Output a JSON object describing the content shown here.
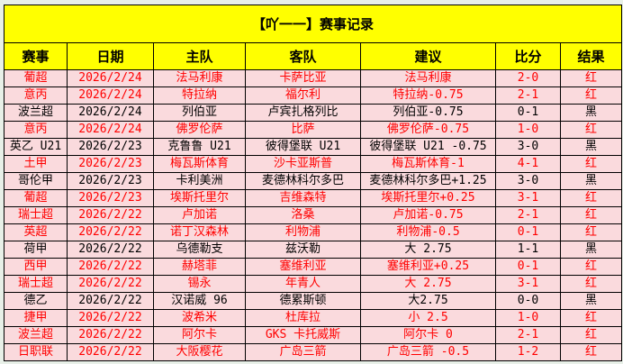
{
  "title": "【吖一一】赛事记录",
  "headers": [
    "赛事",
    "日期",
    "主队",
    "客队",
    "建议",
    "比分",
    "结果"
  ],
  "colors": {
    "header_bg": "#ffff00",
    "row_bg": "#fadadd",
    "win": "#ff0000",
    "loss": "#000000"
  },
  "rows": [
    [
      "葡超",
      "2026/2/24",
      "法马利康",
      "卡萨比亚",
      "法马利康",
      "2-0",
      "红"
    ],
    [
      "意丙",
      "2026/2/24",
      "特拉纳",
      "福尔利",
      "特拉纳-0.75",
      "2-1",
      "红"
    ],
    [
      "波兰超",
      "2026/2/24",
      "列伯亚",
      "卢宾扎格列比",
      "列伯亚-0.75",
      "0-1",
      "黑"
    ],
    [
      "意丙",
      "2026/2/24",
      "佛罗伦萨",
      "比萨",
      "佛罗伦萨-0.75",
      "1-0",
      "红"
    ],
    [
      "英乙 U21",
      "2026/2/23",
      "克鲁鲁 U21",
      "彼得堡联 U21",
      "彼得堡联 U21 -0.75",
      "3-0",
      "黑"
    ],
    [
      "土甲",
      "2026/2/23",
      "梅瓦斯体育",
      "沙卡亚斯普",
      "梅瓦斯体育-1",
      "4-1",
      "红"
    ],
    [
      "哥伦甲",
      "2026/2/23",
      "卡利美洲",
      "麦德林科尔多巴",
      "麦德林科尔多巴+1.25",
      "3-0",
      "黑"
    ],
    [
      "葡超",
      "2026/2/23",
      "埃斯托里尔",
      "吉维森特",
      "埃斯托里尔+0.25",
      "3-1",
      "红"
    ],
    [
      "瑞士超",
      "2026/2/22",
      "卢加诺",
      "洛桑",
      "卢加诺-0.75",
      "2-1",
      "红"
    ],
    [
      "英超",
      "2026/2/22",
      "诺丁汉森林",
      "利物浦",
      "利物浦-0.5",
      "0-1",
      "红"
    ],
    [
      "荷甲",
      "2026/2/22",
      "乌德勒支",
      "兹沃勒",
      "大 2.75",
      "1-1",
      "黑"
    ],
    [
      "西甲",
      "2026/2/22",
      "赫塔菲",
      "塞维利亚",
      "塞维利亚+0.25",
      "0-1",
      "红"
    ],
    [
      "瑞士超",
      "2026/2/22",
      "锡永",
      "年青人",
      "大 2.75",
      "3-1",
      "红"
    ],
    [
      "德乙",
      "2026/2/22",
      "汉诺威 96",
      "德累斯顿",
      "大2.75",
      "0-0",
      "黑"
    ],
    [
      "捷甲",
      "2026/2/22",
      "波希米",
      "杜库拉",
      "小 2.5",
      "1-0",
      "红"
    ],
    [
      "波兰超",
      "2026/2/22",
      "阿尔卡",
      "GKS 卡托威斯",
      "阿尔卡 0",
      "2-1",
      "红"
    ],
    [
      "日职联",
      "2026/2/22",
      "大阪樱花",
      "广岛三箭",
      "广岛三箭 -0.5",
      "1-2",
      "红"
    ]
  ]
}
